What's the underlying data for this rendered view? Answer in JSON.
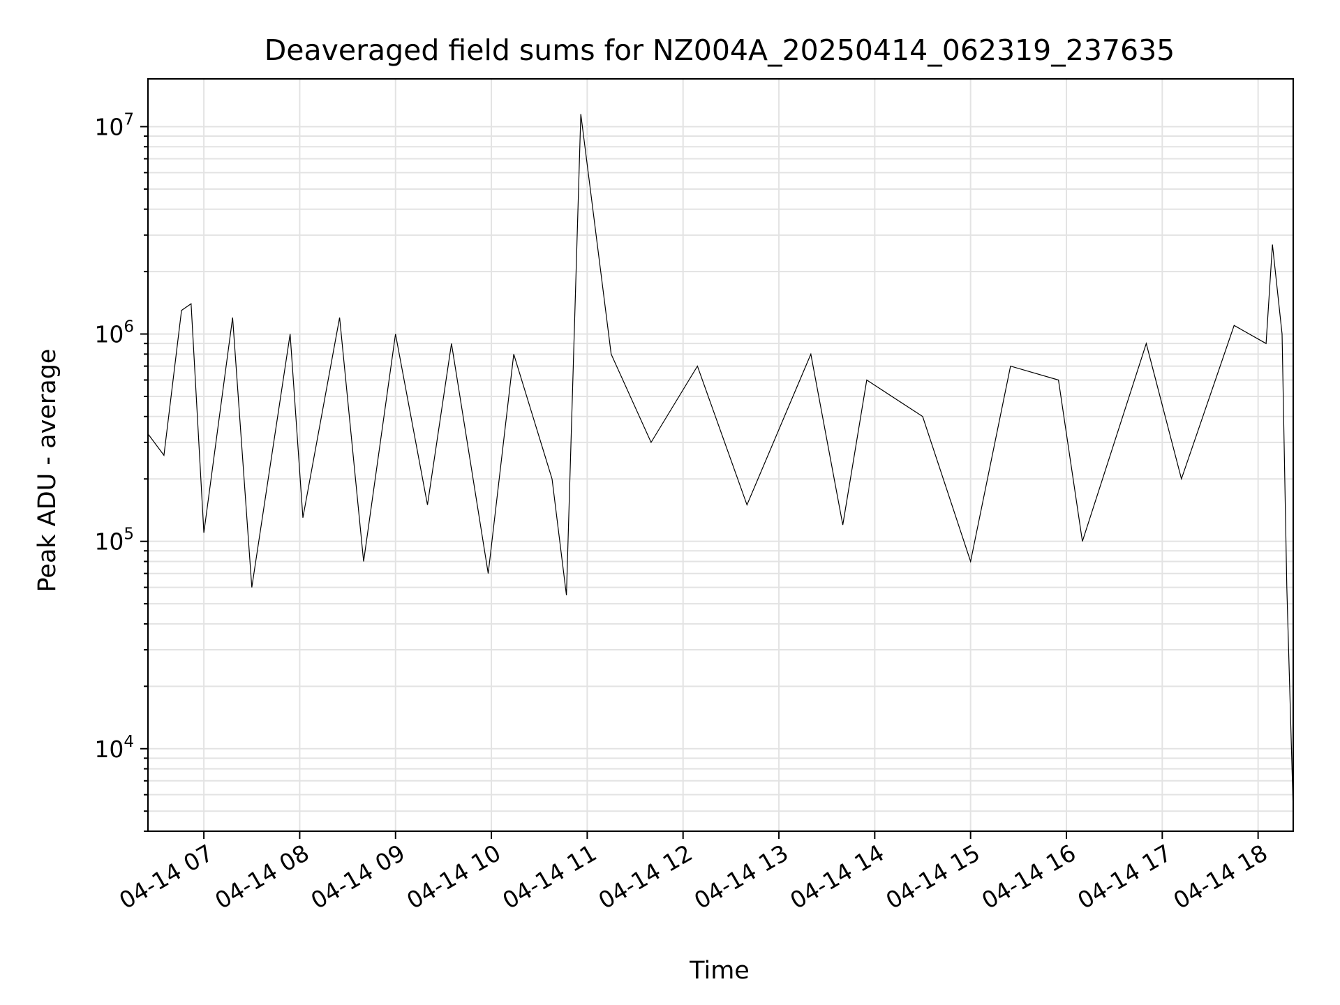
{
  "chart_data": {
    "type": "line",
    "title": "Deaveraged field sums for NZ004A_20250414_062319_237635",
    "xlabel": "Time",
    "ylabel": "Peak ADU - average",
    "yscale": "log",
    "grid": "on (major and minor)",
    "xlim": [
      "2025-04-14 06:25",
      "2025-04-14 18:22"
    ],
    "ylim": [
      4000,
      17000000
    ],
    "x_ticks": [
      "04-14 07",
      "04-14 08",
      "04-14 09",
      "04-14 10",
      "04-14 11",
      "04-14 12",
      "04-14 13",
      "04-14 14",
      "04-14 15",
      "04-14 16",
      "04-14 17",
      "04-14 18"
    ],
    "y_ticks": [
      {
        "base": "10",
        "exp": "4",
        "value": 10000
      },
      {
        "base": "10",
        "exp": "5",
        "value": 100000
      },
      {
        "base": "10",
        "exp": "6",
        "value": 1000000
      },
      {
        "base": "10",
        "exp": "7",
        "value": 10000000
      }
    ],
    "series": [
      {
        "color": "#000000",
        "x": [
          "2025-04-14 06:25",
          "2025-04-14 06:35",
          "2025-04-14 06:46",
          "2025-04-14 06:52",
          "2025-04-14 07:00",
          "2025-04-14 07:18",
          "2025-04-14 07:30",
          "2025-04-14 07:54",
          "2025-04-14 08:02",
          "2025-04-14 08:25",
          "2025-04-14 08:40",
          "2025-04-14 09:00",
          "2025-04-14 09:20",
          "2025-04-14 09:35",
          "2025-04-14 09:58",
          "2025-04-14 10:14",
          "2025-04-14 10:38",
          "2025-04-14 10:47",
          "2025-04-14 10:56",
          "2025-04-14 11:15",
          "2025-04-14 11:40",
          "2025-04-14 12:09",
          "2025-04-14 12:40",
          "2025-04-14 13:20",
          "2025-04-14 13:40",
          "2025-04-14 13:55",
          "2025-04-14 14:30",
          "2025-04-14 15:00",
          "2025-04-14 15:25",
          "2025-04-14 15:55",
          "2025-04-14 16:10",
          "2025-04-14 16:50",
          "2025-04-14 17:12",
          "2025-04-14 17:45",
          "2025-04-14 18:05",
          "2025-04-14 18:09",
          "2025-04-14 18:15",
          "2025-04-14 18:18",
          "2025-04-14 18:22"
        ],
        "y": [
          330000,
          260000,
          1300000,
          1400000,
          110000,
          1200000,
          60000,
          1000000,
          130000,
          1200000,
          80000,
          1000000,
          150000,
          900000,
          70000,
          800000,
          200000,
          55000,
          11500000,
          800000,
          300000,
          700000,
          150000,
          800000,
          120000,
          600000,
          400000,
          80000,
          700000,
          600000,
          100000,
          900000,
          200000,
          1100000,
          900000,
          2700000,
          1000000,
          60000,
          5000
        ]
      }
    ]
  }
}
